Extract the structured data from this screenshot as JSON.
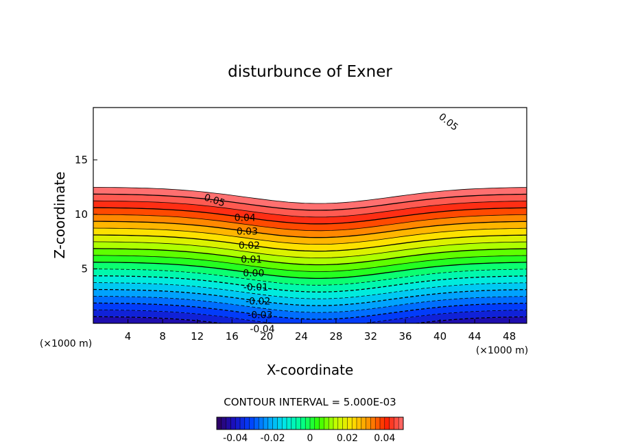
{
  "chart_data": {
    "type": "heatmap",
    "title": "disturbunce of Exner",
    "xlabel": "X-coordinate",
    "ylabel": "Z-coordinate",
    "x_unit": "(×1000 m)",
    "z_unit": "(×1000 m)",
    "xlim": [
      0,
      50
    ],
    "ylim": [
      0,
      19.8
    ],
    "x_ticks": [
      4,
      8,
      12,
      16,
      20,
      24,
      28,
      32,
      36,
      40,
      44,
      48
    ],
    "y_ticks": [
      5,
      10,
      15
    ],
    "contour_interval_text": "CONTOUR INTERVAL = 5.000E-03",
    "contour_interval": 0.005,
    "contour_labels": [
      "0.05",
      "0.05",
      "0.04",
      "0.03",
      "0.02",
      "0.01",
      "0.00",
      "-0.01",
      "-0.02",
      "-0.03",
      "-0.04"
    ],
    "colorbar": {
      "range": [
        -0.05,
        0.05
      ],
      "ticks": [
        "-0.04",
        "-0.02",
        "0",
        "0.02",
        "0.04"
      ],
      "colors": [
        "#30005a",
        "#1a10c0",
        "#0040ff",
        "#00a0ff",
        "#00e8e8",
        "#00ff90",
        "#30ff00",
        "#c0ff00",
        "#ffe000",
        "#ff9000",
        "#ff2000",
        "#ff7070"
      ]
    },
    "field": {
      "surface_value": -0.045,
      "vertical_gradient_per_km": 0.008,
      "mountain_center_x": 26,
      "mountain_height_km": 1.5,
      "mountain_half_width_km": 12,
      "max_shaded_value": 0.055
    }
  }
}
